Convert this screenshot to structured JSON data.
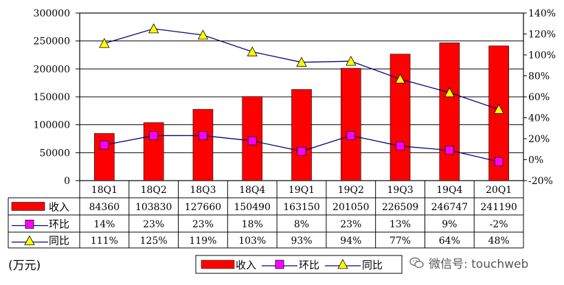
{
  "chart_data": {
    "type": "bar+line",
    "categories": [
      "18Q1",
      "18Q2",
      "18Q3",
      "18Q4",
      "19Q1",
      "19Q2",
      "19Q3",
      "19Q4",
      "20Q1"
    ],
    "series": [
      {
        "name": "收入",
        "kind": "bar",
        "axis": "left",
        "color": "#ff0000",
        "values": [
          84360,
          103830,
          127660,
          150490,
          163150,
          201050,
          226509,
          246747,
          241190
        ]
      },
      {
        "name": "环比",
        "kind": "line",
        "axis": "right",
        "color": "#ff00ff",
        "marker": "square",
        "values": [
          14,
          23,
          23,
          18,
          8,
          23,
          13,
          9,
          -2
        ],
        "labels": [
          "14%",
          "23%",
          "23%",
          "18%",
          "8%",
          "23%",
          "13%",
          "9%",
          "-2%"
        ]
      },
      {
        "name": "同比",
        "kind": "line",
        "axis": "right",
        "color": "#ffff00",
        "marker": "triangle",
        "values": [
          111,
          125,
          119,
          103,
          93,
          94,
          77,
          64,
          48
        ],
        "labels": [
          "111%",
          "125%",
          "119%",
          "103%",
          "93%",
          "94%",
          "77%",
          "64%",
          "48%"
        ]
      }
    ],
    "ylim_left": [
      0,
      300000
    ],
    "yticks_left": [
      "0",
      "50000",
      "100000",
      "150000",
      "200000",
      "250000",
      "300000"
    ],
    "ylim_right": [
      -20,
      140
    ],
    "yticks_right": [
      "-20%",
      "0%",
      "20%",
      "40%",
      "60%",
      "80%",
      "100%",
      "120%",
      "140%"
    ],
    "ylabel": "(万元)",
    "grid": "horizontal",
    "legend_position": "bottom-right",
    "line_color": "#000080"
  },
  "watermark": {
    "text": "微信号: touchweb",
    "icon": "wechat-icon"
  }
}
